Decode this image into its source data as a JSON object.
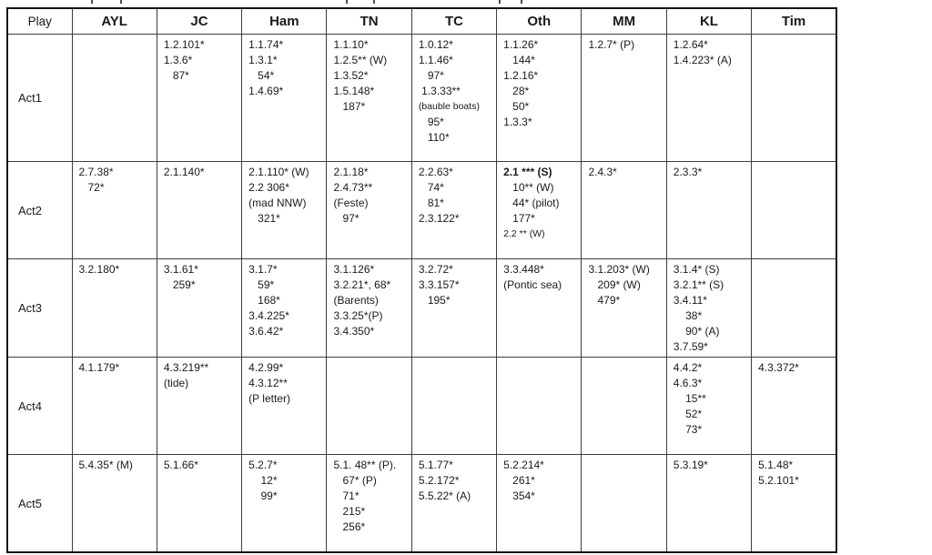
{
  "table": {
    "columns": [
      "Play",
      "AYL",
      "JC",
      "Ham",
      "TN",
      "TC",
      "Oth",
      "MM",
      "KL",
      "Tim"
    ],
    "rows": [
      {
        "label": "Act1",
        "cells": [
          [],
          [
            "1.2.101*",
            "1.3.6*",
            "   87*"
          ],
          [
            "1.1.74*",
            "1.3.1*",
            "   54*",
            "1.4.69*"
          ],
          [
            "1.1.10*",
            "1.2.5** (W)",
            "1.3.52*",
            "1.5.148*",
            "   187*"
          ],
          [
            "1.0.12*",
            "1.1.46*",
            "   97*",
            " 1.3.33**",
            {
              "text": "(bauble boats)",
              "small": true
            },
            "   95*",
            "   110*"
          ],
          [
            "1.1.26*",
            "   144*",
            "1.2.16*",
            "   28*",
            "   50*",
            "1.3.3*"
          ],
          [
            "1.2.7* (P)"
          ],
          [
            "1.2.64*",
            "1.4.223* (A)"
          ],
          []
        ]
      },
      {
        "label": "Act2",
        "cells": [
          [
            "2.7.38*",
            "   72*"
          ],
          [
            "2.1.140*"
          ],
          [
            "2.1.110* (W)",
            "2.2 306*",
            "(mad NNW)",
            "   321*"
          ],
          [
            "2.1.18*",
            "2.4.73**",
            "(Feste)",
            "   97*"
          ],
          [
            "2.2.63*",
            "   74*",
            "   81*",
            "2.3.122*"
          ],
          [
            {
              "text": "2.1 *** (S)",
              "bold": true
            },
            "   10** (W)",
            "   44* (pilot)",
            "   177*",
            {
              "text": "2.2 ** (W)",
              "small": true
            }
          ],
          [
            "2.4.3*"
          ],
          [
            "2.3.3*"
          ],
          []
        ]
      },
      {
        "label": "Act3",
        "cells": [
          [
            "3.2.180*"
          ],
          [
            "3.1.61*",
            "   259*"
          ],
          [
            "3.1.7*",
            "   59*",
            "   168*",
            "3.4.225*",
            "3.6.42*"
          ],
          [
            "3.1.126*",
            "3.2.21*, 68*",
            "(Barents)",
            "3.3.25*(P)",
            "3.4.350*"
          ],
          [
            "3.2.72*",
            "3.3.157*",
            "   195*"
          ],
          [
            "3.3.448*",
            "(Pontic sea)"
          ],
          [
            "3.1.203* (W)",
            "   209* (W)",
            "   479*"
          ],
          [
            "3.1.4* (S)",
            "3.2.1** (S)",
            "3.4.11*",
            "    38*",
            "    90* (A)",
            "3.7.59*"
          ],
          []
        ]
      },
      {
        "label": "Act4",
        "cells": [
          [
            "4.1.179*"
          ],
          [
            "4.3.219**",
            "(tide)"
          ],
          [
            "4.2.99*",
            "4.3.12**",
            "(P letter)"
          ],
          [],
          [],
          [],
          [],
          [
            "4.4.2*",
            "4.6.3*",
            "    15**",
            "    52*",
            "    73*"
          ],
          [
            "4.3.372*"
          ]
        ]
      },
      {
        "label": "Act5",
        "cells": [
          [
            "5.4.35* (M)"
          ],
          [
            "5.1.66*"
          ],
          [
            "5.2.7*",
            "    12*",
            "    99*"
          ],
          [
            "5.1. 48** (P).",
            "   67* (P)",
            "   71*",
            "   215*",
            "   256*"
          ],
          [
            "5.1.77*",
            "5.2.172*",
            "5.5.22* (A)"
          ],
          [
            "5.2.214*",
            "   261*",
            "   354*"
          ],
          [],
          [
            "5.3.19*"
          ],
          [
            "5.1.48*",
            "5.2.101*"
          ]
        ]
      }
    ]
  }
}
